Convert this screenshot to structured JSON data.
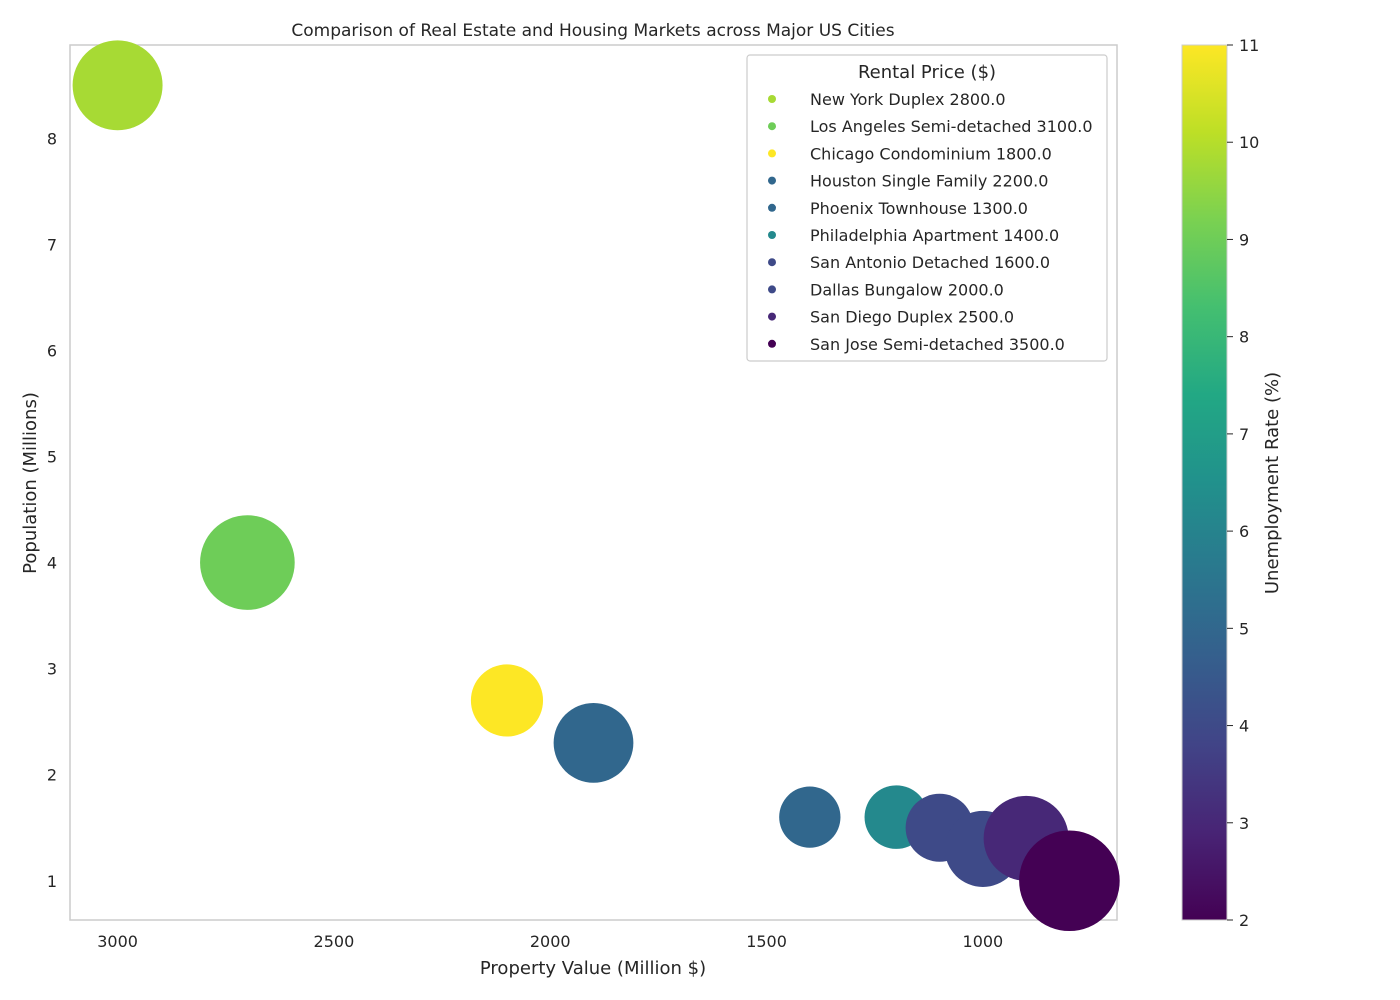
{
  "chart_data": {
    "type": "scatter",
    "title": "Comparison of Real Estate and Housing Markets across Major US Cities",
    "xlabel": "Property Value (Million $)",
    "ylabel": "Population (Millions)",
    "xlim": [
      3110,
      690
    ],
    "ylim": [
      0.63,
      8.88
    ],
    "x_inverted": true,
    "xticks": [
      3000,
      2500,
      2000,
      1500,
      1000
    ],
    "yticks": [
      1,
      2,
      3,
      4,
      5,
      6,
      7,
      8
    ],
    "grid": false,
    "legend_title": "Rental Price ($)",
    "legend_placement": "top-right",
    "colorbar": {
      "label": "Unemployment Rate (%)",
      "range": [
        2,
        11
      ],
      "ticks": [
        2,
        3,
        4,
        5,
        6,
        7,
        8,
        9,
        10,
        11
      ],
      "colormap": "viridis"
    },
    "size_encodes": "Rental Price ($)",
    "color_encodes": "Unemployment Rate (%)",
    "points": [
      {
        "label": "New York Duplex 2800.0",
        "x": 3000,
        "y": 8.5,
        "rent": 2800,
        "unemployment": 9.8
      },
      {
        "label": "Los Angeles Semi-detached 3100.0",
        "x": 2700,
        "y": 4.0,
        "rent": 3100,
        "unemployment": 9.0
      },
      {
        "label": "Chicago Condominium 1800.0",
        "x": 2100,
        "y": 2.7,
        "rent": 1800,
        "unemployment": 11.0
      },
      {
        "label": "Houston Single Family 2200.0",
        "x": 1900,
        "y": 2.3,
        "rent": 2200,
        "unemployment": 5.0
      },
      {
        "label": "Phoenix Townhouse 1300.0",
        "x": 1400,
        "y": 1.6,
        "rent": 1300,
        "unemployment": 5.0
      },
      {
        "label": "Philadelphia Apartment 1400.0",
        "x": 1200,
        "y": 1.6,
        "rent": 1400,
        "unemployment": 6.2
      },
      {
        "label": "San Antonio Detached 1600.0",
        "x": 1100,
        "y": 1.5,
        "rent": 1600,
        "unemployment": 4.0
      },
      {
        "label": "Dallas Bungalow 2000.0",
        "x": 1000,
        "y": 1.3,
        "rent": 2000,
        "unemployment": 4.0
      },
      {
        "label": "San Diego Duplex 2500.0",
        "x": 900,
        "y": 1.4,
        "rent": 2500,
        "unemployment": 3.0
      },
      {
        "label": "San Jose Semi-detached 3500.0",
        "x": 800,
        "y": 1.0,
        "rent": 3500,
        "unemployment": 2.0
      }
    ]
  }
}
